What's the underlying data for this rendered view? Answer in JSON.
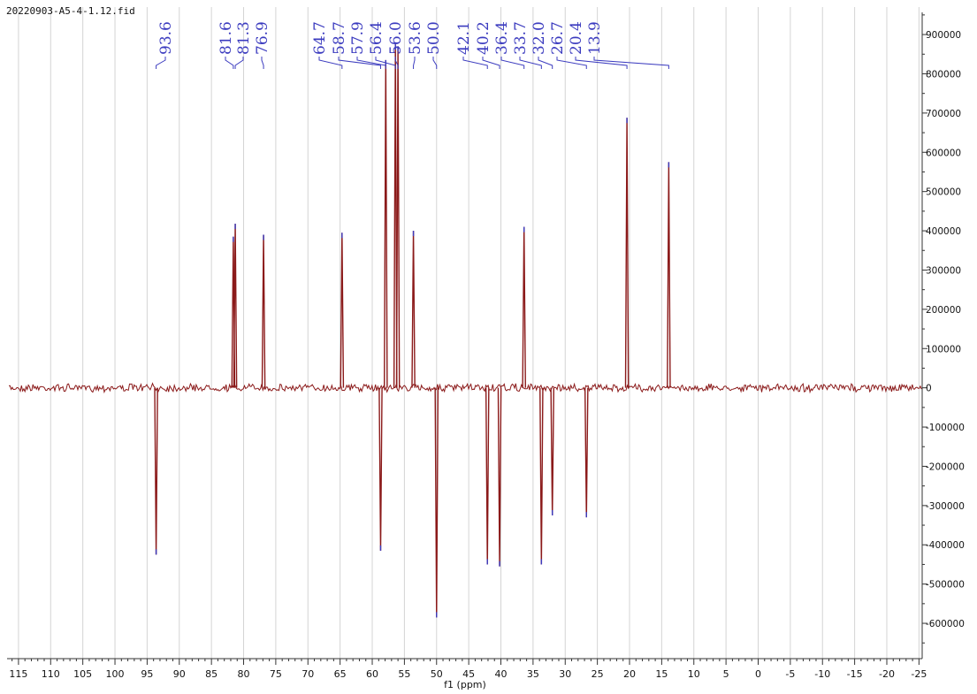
{
  "colors": {
    "spectrum": "#8b1a1a",
    "peak_label": "#3b3bbf",
    "grid": "#d4d4d4",
    "axis": "#333333",
    "background": "#ffffff"
  },
  "chart_data": {
    "type": "line",
    "title": "20220903-A5-4-1.12.fid",
    "xlabel": "f1 (ppm)",
    "ylabel": "",
    "x_reversed": true,
    "xlim": [
      116.5,
      -25.5
    ],
    "ylim": [
      -690000,
      970000
    ],
    "grid": true,
    "y_axis_position": "right",
    "x_ticks": [
      115,
      110,
      105,
      100,
      95,
      90,
      85,
      80,
      75,
      70,
      65,
      60,
      55,
      50,
      45,
      40,
      35,
      30,
      25,
      20,
      15,
      10,
      5,
      0,
      -5,
      -10,
      -15,
      -20,
      -25
    ],
    "x_tick_labels": [
      "115",
      "110",
      "105",
      "100",
      "95",
      "90",
      "85",
      "80",
      "75",
      "70",
      "65",
      "60",
      "55",
      "50",
      "45",
      "40",
      "35",
      "30",
      "25",
      "20",
      "15",
      "10",
      "5",
      "0",
      "-5",
      "-10",
      "-15",
      "-20",
      "-25"
    ],
    "y_ticks": [
      900000,
      800000,
      700000,
      600000,
      500000,
      400000,
      300000,
      200000,
      100000,
      0,
      -100000,
      -200000,
      -300000,
      -400000,
      -500000,
      -600000
    ],
    "y_tick_labels": [
      "900000",
      "800000",
      "700000",
      "600000",
      "500000",
      "400000",
      "300000",
      "200000",
      "100000",
      "0",
      "-100000",
      "-200000",
      "-300000",
      "-400000",
      "-500000",
      "-600000"
    ],
    "peak_labels": [
      "93.6",
      "81.6",
      "81.3",
      "76.9",
      "64.7",
      "58.7",
      "57.9",
      "56.4",
      "56.0",
      "53.6",
      "50.0",
      "42.1",
      "40.2",
      "36.4",
      "33.7",
      "32.0",
      "26.7",
      "20.4",
      "13.9"
    ],
    "peaks": [
      {
        "x": 93.6,
        "y": -425000
      },
      {
        "x": 81.6,
        "y": 385000
      },
      {
        "x": 81.3,
        "y": 418000
      },
      {
        "x": 76.9,
        "y": 390000
      },
      {
        "x": 64.7,
        "y": 395000
      },
      {
        "x": 58.7,
        "y": -415000
      },
      {
        "x": 57.9,
        "y": 835000
      },
      {
        "x": 56.4,
        "y": 875000
      },
      {
        "x": 56.0,
        "y": 870000
      },
      {
        "x": 53.6,
        "y": 400000
      },
      {
        "x": 50.0,
        "y": -585000
      },
      {
        "x": 42.1,
        "y": -450000
      },
      {
        "x": 40.2,
        "y": -455000
      },
      {
        "x": 36.4,
        "y": 410000
      },
      {
        "x": 33.7,
        "y": -450000
      },
      {
        "x": 32.0,
        "y": -325000
      },
      {
        "x": 26.7,
        "y": -330000
      },
      {
        "x": 20.4,
        "y": 688000
      },
      {
        "x": 13.9,
        "y": 575000
      }
    ]
  }
}
